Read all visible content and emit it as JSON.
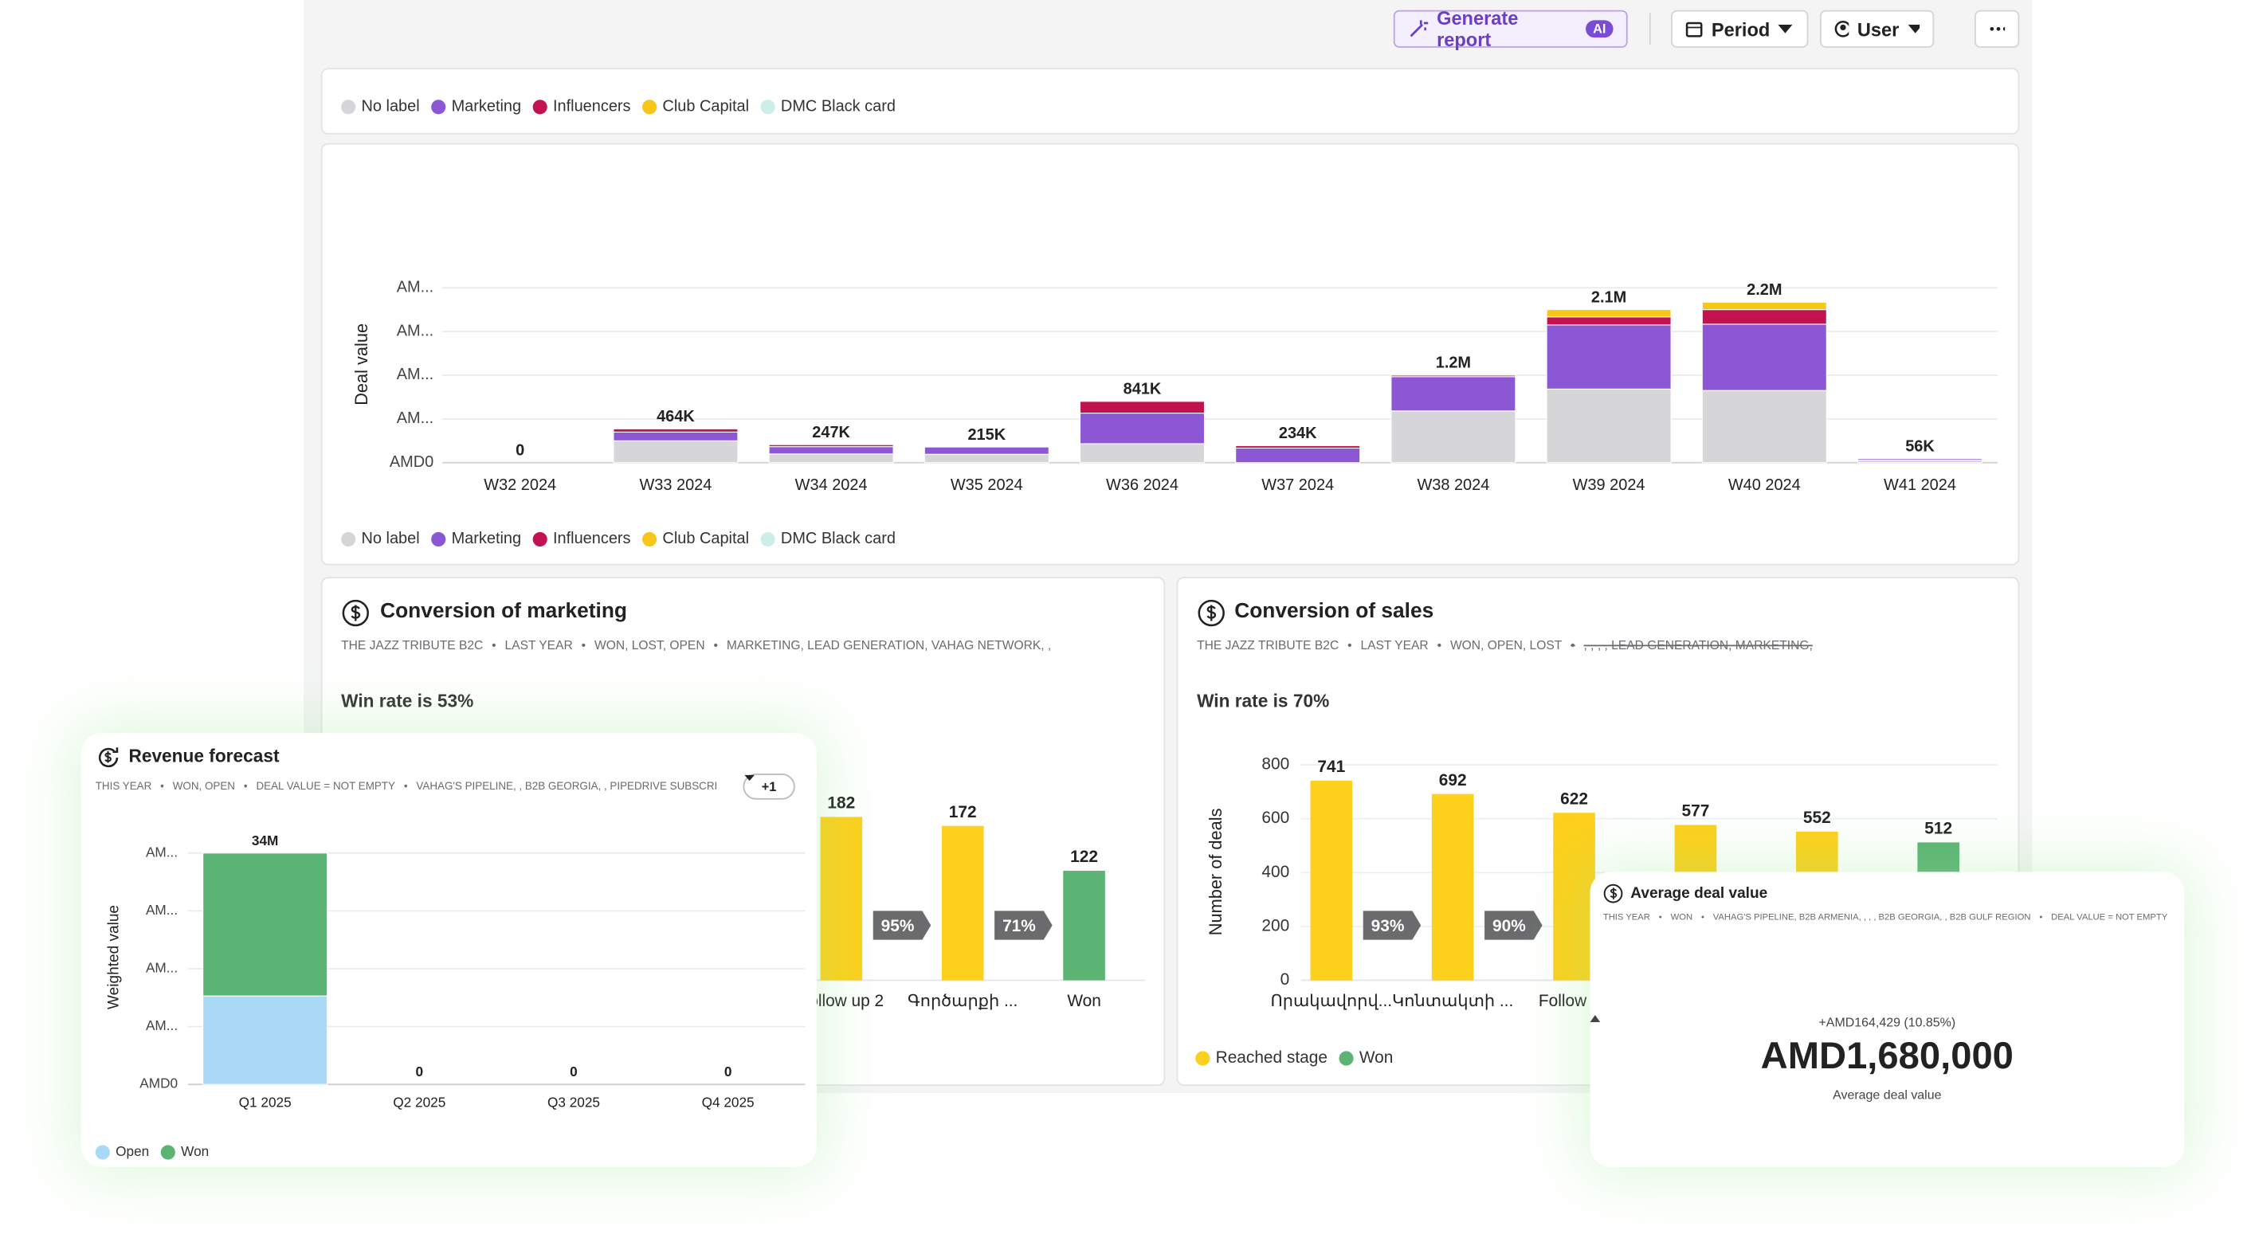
{
  "toolbar": {
    "generate": "Generate report",
    "ai": "AI",
    "period": "Period",
    "user": "User"
  },
  "chart_data": [
    {
      "type": "bar",
      "stacked": true,
      "y_label": "Deal value",
      "legend": "bottom",
      "grid": true,
      "categories": [
        "W32 2024",
        "W33 2024",
        "W34 2024",
        "W35 2024",
        "W36 2024",
        "W37 2024",
        "W38 2024",
        "W39 2024",
        "W40 2024",
        "W41 2024"
      ],
      "series": [
        {
          "name": "No label",
          "color": "#d6d6d8",
          "values": [
            0,
            300000,
            120000,
            115000,
            260000,
            0,
            710000,
            1010000,
            990000,
            36000
          ]
        },
        {
          "name": "Marketing",
          "color": "#8c57d4",
          "values": [
            0,
            120000,
            100000,
            100000,
            420000,
            200000,
            470000,
            880000,
            910000,
            20000
          ]
        },
        {
          "name": "Influencers",
          "color": "#c2124f",
          "values": [
            0,
            44000,
            27000,
            0,
            161000,
            34000,
            20000,
            110000,
            200000,
            0
          ]
        },
        {
          "name": "Club Capital",
          "color": "#f7c619",
          "values": [
            0,
            0,
            0,
            0,
            0,
            0,
            0,
            100000,
            100000,
            0
          ]
        },
        {
          "name": "DMC Black card",
          "color": "#cdeee8",
          "values": [
            0,
            0,
            0,
            0,
            0,
            0,
            0,
            0,
            0,
            0
          ]
        }
      ],
      "totals": [
        0,
        464000,
        247000,
        215000,
        841000,
        234000,
        1200000,
        2100000,
        2200000,
        56000
      ],
      "total_labels": [
        "0",
        "464K",
        "247K",
        "215K",
        "841K",
        "234K",
        "1.2M",
        "2.1M",
        "2.2M",
        "56K"
      ],
      "ylim": [
        0,
        2400000
      ],
      "yticks": [
        {
          "value": 0,
          "label": "AMD0"
        },
        {
          "value": 600000,
          "label": "AM..."
        },
        {
          "value": 1200000,
          "label": "AM..."
        },
        {
          "value": 1800000,
          "label": "AM..."
        },
        {
          "value": 2400000,
          "label": "AM..."
        }
      ]
    },
    {
      "type": "funnel",
      "title": "Conversion of marketing",
      "filters": [
        "THE JAZZ TRIBUTE B2C",
        "LAST YEAR",
        "WON, LOST, OPEN",
        "MARKETING, LEAD GENERATION, VAHAG NETWORK, ,"
      ],
      "win_rate": "Win rate is 53%",
      "categories": [
        "Follow up 2",
        "Գործարքի ...",
        "Won"
      ],
      "values": [
        182,
        172,
        122
      ],
      "colors": [
        "#fdd01b",
        "#fdd01b",
        "#5bb374"
      ],
      "conversion_rates": [
        95,
        71
      ],
      "conversion_labels": [
        "95%",
        "71%"
      ],
      "ylim": [
        0,
        240
      ]
    },
    {
      "type": "funnel",
      "title": "Conversion of sales",
      "filters": [
        "THE JAZZ TRIBUTE B2C",
        "LAST YEAR",
        "WON, OPEN, LOST",
        ", , , , LEAD GENERATION, MARKETING,"
      ],
      "win_rate": "Win rate is 70%",
      "y_label": "Number of deals",
      "categories": [
        "Որակավորվ...",
        "Կոնտակտի ...",
        "Follow up",
        null,
        null,
        null
      ],
      "values": [
        741,
        692,
        622,
        577,
        552,
        512
      ],
      "colors": [
        "#fdd01b",
        "#fdd01b",
        "#fdd01b",
        "#fdd01b",
        "#fdd01b",
        "#5bb374"
      ],
      "conversion_rates": [
        93,
        90
      ],
      "conversion_labels": [
        "93%",
        "90%"
      ],
      "legend_items": [
        {
          "name": "Reached stage",
          "color": "#fdd01b"
        },
        {
          "name": "Won",
          "color": "#5bb374"
        }
      ],
      "ylim": [
        0,
        800
      ],
      "yticks": [
        0,
        200,
        400,
        600,
        800
      ],
      "grid": true
    },
    {
      "type": "bar",
      "stacked": true,
      "title": "Revenue forecast",
      "chip": "+1",
      "filters": [
        "THIS YEAR",
        "WON, OPEN",
        "DEAL VALUE = NOT EMPTY",
        "VAHAG'S PIPELINE, , B2B GEORGIA, , PIPEDRIVE SUBSCRI"
      ],
      "y_label": "Weighted value",
      "legend": "bottom",
      "grid": true,
      "categories": [
        "Q1 2025",
        "Q2 2025",
        "Q3 2025",
        "Q4 2025"
      ],
      "series": [
        {
          "name": "Open",
          "color": "#a9d9f7",
          "values": [
            13000000,
            0,
            0,
            0
          ]
        },
        {
          "name": "Won",
          "color": "#5bb374",
          "values": [
            21000000,
            0,
            0,
            0
          ]
        }
      ],
      "totals": [
        34000000,
        0,
        0,
        0
      ],
      "total_labels": [
        "34M",
        "0",
        "0",
        "0"
      ],
      "ylim": [
        0,
        34000000
      ],
      "yticks": [
        {
          "value": 0,
          "label": "AMD0"
        },
        {
          "value": 8500000,
          "label": "AM..."
        },
        {
          "value": 17000000,
          "label": "AM..."
        },
        {
          "value": 25500000,
          "label": "AM..."
        },
        {
          "value": 34000000,
          "label": "AM..."
        }
      ]
    }
  ],
  "kpi": {
    "title": "Average deal value",
    "filters": [
      "THIS YEAR",
      "WON",
      "VAHAG'S PIPELINE, B2B ARMENIA, , , , B2B GEORGIA, , B2B GULF REGION",
      "DEAL VALUE = NOT EMPTY"
    ],
    "change": "+AMD164,429 (10.85%)",
    "value": "AMD1,680,000",
    "caption": "Average deal value"
  }
}
